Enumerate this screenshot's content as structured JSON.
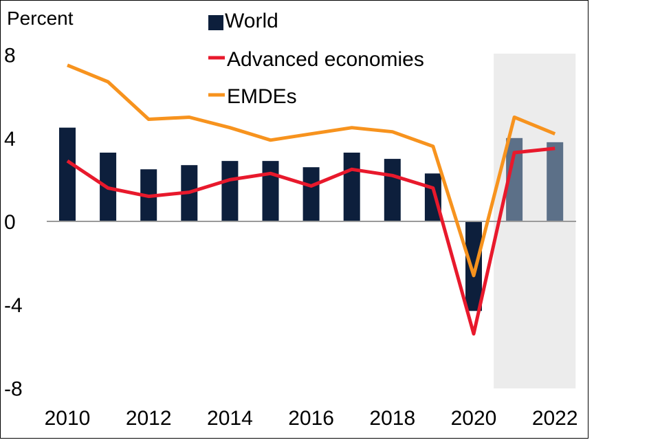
{
  "chart_data": {
    "type": "bar",
    "title": "",
    "ylabel": "Percent",
    "xlabel": "",
    "ylim": [
      -8,
      8
    ],
    "yticks": [
      "8",
      "4",
      "0",
      "-4",
      "-8"
    ],
    "ytick_values": [
      8,
      4,
      0,
      -4,
      -8
    ],
    "categories": [
      2010,
      2011,
      2012,
      2013,
      2014,
      2015,
      2016,
      2017,
      2018,
      2019,
      2020,
      2021,
      2022
    ],
    "xtick_labels": [
      "2010",
      "2012",
      "2014",
      "2016",
      "2018",
      "2020",
      "2022"
    ],
    "xtick_values": [
      2010,
      2012,
      2014,
      2016,
      2018,
      2020,
      2022
    ],
    "forecast_shading": {
      "from": 2021,
      "to": 2022,
      "color": "#ececec"
    },
    "series": [
      {
        "name": "World",
        "kind": "bar",
        "color": "#0d1f3c",
        "forecast_color": "#5c7088",
        "forecast_from": 2021,
        "values": [
          4.5,
          3.3,
          2.5,
          2.7,
          2.9,
          2.9,
          2.6,
          3.3,
          3.0,
          2.3,
          -4.3,
          4.0,
          3.8
        ]
      },
      {
        "name": "Advanced economies",
        "kind": "line",
        "color": "#e8192c",
        "values": [
          2.9,
          1.6,
          1.2,
          1.4,
          2.0,
          2.3,
          1.7,
          2.5,
          2.2,
          1.6,
          -5.4,
          3.3,
          3.5
        ]
      },
      {
        "name": "EMDEs",
        "kind": "line",
        "color": "#f7931e",
        "values": [
          7.5,
          6.7,
          4.9,
          5.0,
          4.5,
          3.9,
          4.2,
          4.5,
          4.3,
          3.6,
          -2.6,
          5.0,
          4.2
        ]
      }
    ],
    "legend": [
      "World",
      "Advanced economies",
      "EMDEs"
    ],
    "legend_position": "top-center"
  }
}
